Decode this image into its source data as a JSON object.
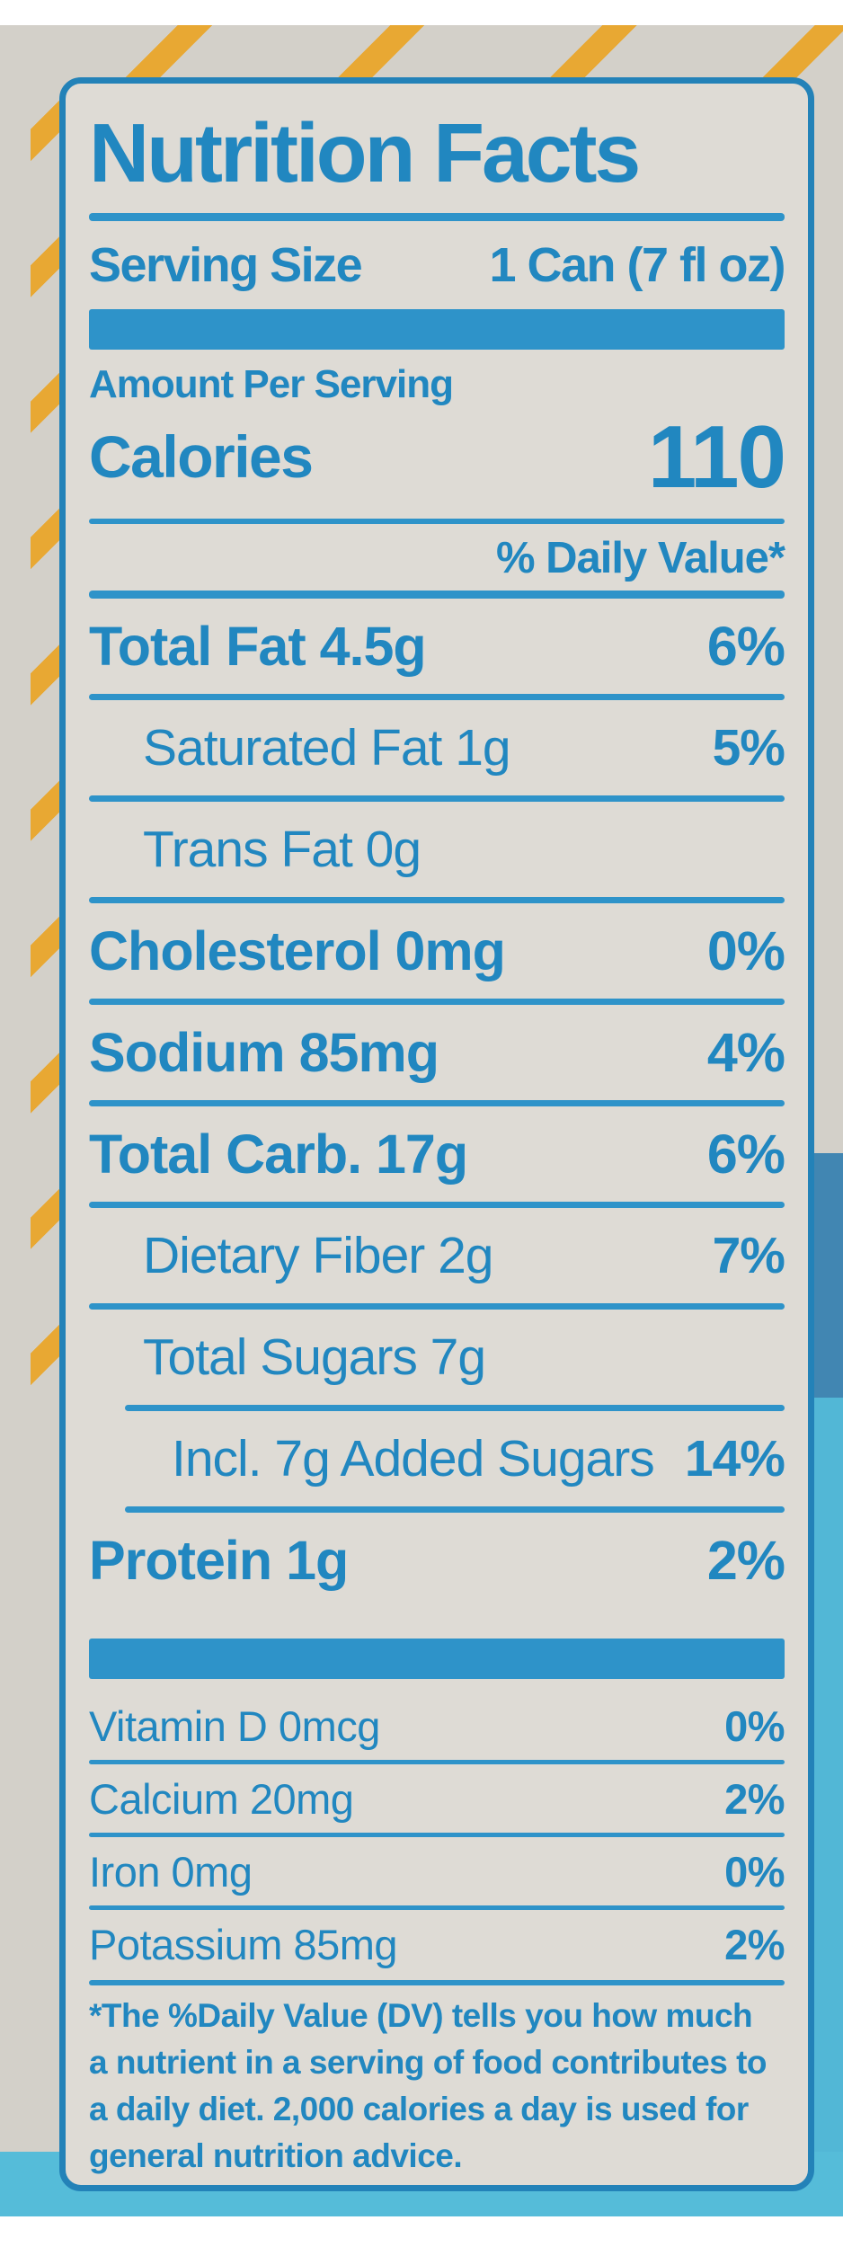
{
  "colors": {
    "print_blue": "#2187c0",
    "bar_blue": "#2e93c9",
    "border_blue": "#2382b8",
    "label_background": "#dedbd5",
    "photo_background": "#d3d0c9",
    "stripe_yellow": "#e8a833",
    "can_cyan": "#55bcd9",
    "can_blue": "#4186b2"
  },
  "nutrition_label": {
    "title": "Nutrition Facts",
    "serving_size_label": "Serving Size",
    "serving_size_value": "1 Can (7 fl oz)",
    "amount_per_serving": "Amount Per Serving",
    "calories_label": "Calories",
    "calories_value": "110",
    "daily_value_header": "% Daily Value*",
    "rows": [
      {
        "name": "Total Fat 4.5g",
        "dv": "6%"
      },
      {
        "name": "Saturated Fat 1g",
        "dv": "5%"
      },
      {
        "name": "Trans Fat 0g",
        "dv": ""
      },
      {
        "name": "Cholesterol 0mg",
        "dv": "0%"
      },
      {
        "name": "Sodium 85mg",
        "dv": "4%"
      },
      {
        "name": "Total Carb. 17g",
        "dv": "6%"
      },
      {
        "name": "Dietary Fiber 2g",
        "dv": "7%"
      },
      {
        "name": "Total Sugars 7g",
        "dv": ""
      },
      {
        "name": "Incl. 7g Added Sugars",
        "dv": "14%"
      },
      {
        "name": "Protein 1g",
        "dv": "2%"
      }
    ],
    "micronutrients": [
      {
        "name": "Vitamin D 0mcg",
        "dv": "0%"
      },
      {
        "name": "Calcium 20mg",
        "dv": "2%"
      },
      {
        "name": "Iron 0mg",
        "dv": "0%"
      },
      {
        "name": "Potassium 85mg",
        "dv": "2%"
      }
    ],
    "footnote_lines": [
      "*The %Daily Value (DV) tells you how much",
      "a nutrient in a serving of food contributes to",
      "a daily diet. 2,000 calories a day is used for",
      "general nutrition advice."
    ]
  }
}
